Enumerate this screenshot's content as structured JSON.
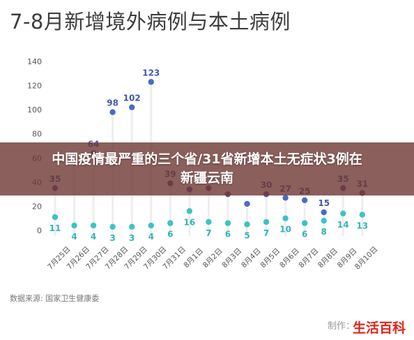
{
  "header": {
    "title": "7-8月新增境外病例与本土病例"
  },
  "banner": {
    "line1": "中国疫情最严重的三个省/31省新增本土无症状3例在",
    "line2": "新疆云南"
  },
  "footer": {
    "source": "数据来源: 国家卫生健康委",
    "maker": "制作：",
    "logo": "生活百科"
  },
  "colors": {
    "imported_purple": "#6a4aa2",
    "imported_blue": "#4a6bc4",
    "local": "#3cc3c3",
    "stem": "#eeeeee",
    "grid": "#dddddd",
    "logo": "#e3231b"
  },
  "chart_data": {
    "type": "scatter",
    "title": "7-8月新增境外病例与本土病例",
    "categories": [
      "7月25日",
      "7月26日",
      "7月27日",
      "7月28日",
      "7月29日",
      "7月30日",
      "7月31日",
      "8月1日",
      "8月2日",
      "8月3日",
      "8月4日",
      "8月5日",
      "8月6日",
      "8月7日",
      "8月8日",
      "8月9日",
      "8月10日"
    ],
    "ylim": [
      0,
      140
    ],
    "yticks": [
      0,
      20,
      40,
      60,
      80,
      100,
      120,
      140
    ],
    "grid": false,
    "series": [
      {
        "values": [
          35,
          57,
          64,
          98,
          102,
          123,
          39,
          34,
          35,
          30,
          22,
          30,
          27,
          25,
          15,
          35,
          31
        ],
        "labels": [
          "35",
          "",
          "64",
          "98",
          "102",
          "123",
          "39",
          "",
          "",
          "",
          "",
          "30",
          "27",
          "25",
          "15",
          "35",
          "31"
        ]
      },
      {
        "values": [
          11,
          4,
          4,
          3,
          3,
          4,
          6,
          16,
          7,
          6,
          5,
          7,
          10,
          6,
          8,
          14,
          13
        ],
        "labels": [
          "11",
          "4",
          "4",
          "3",
          "3",
          "4",
          "6",
          "16",
          "7",
          "6",
          "5",
          "7",
          "10",
          "6",
          "8",
          "14",
          "13"
        ]
      }
    ]
  }
}
